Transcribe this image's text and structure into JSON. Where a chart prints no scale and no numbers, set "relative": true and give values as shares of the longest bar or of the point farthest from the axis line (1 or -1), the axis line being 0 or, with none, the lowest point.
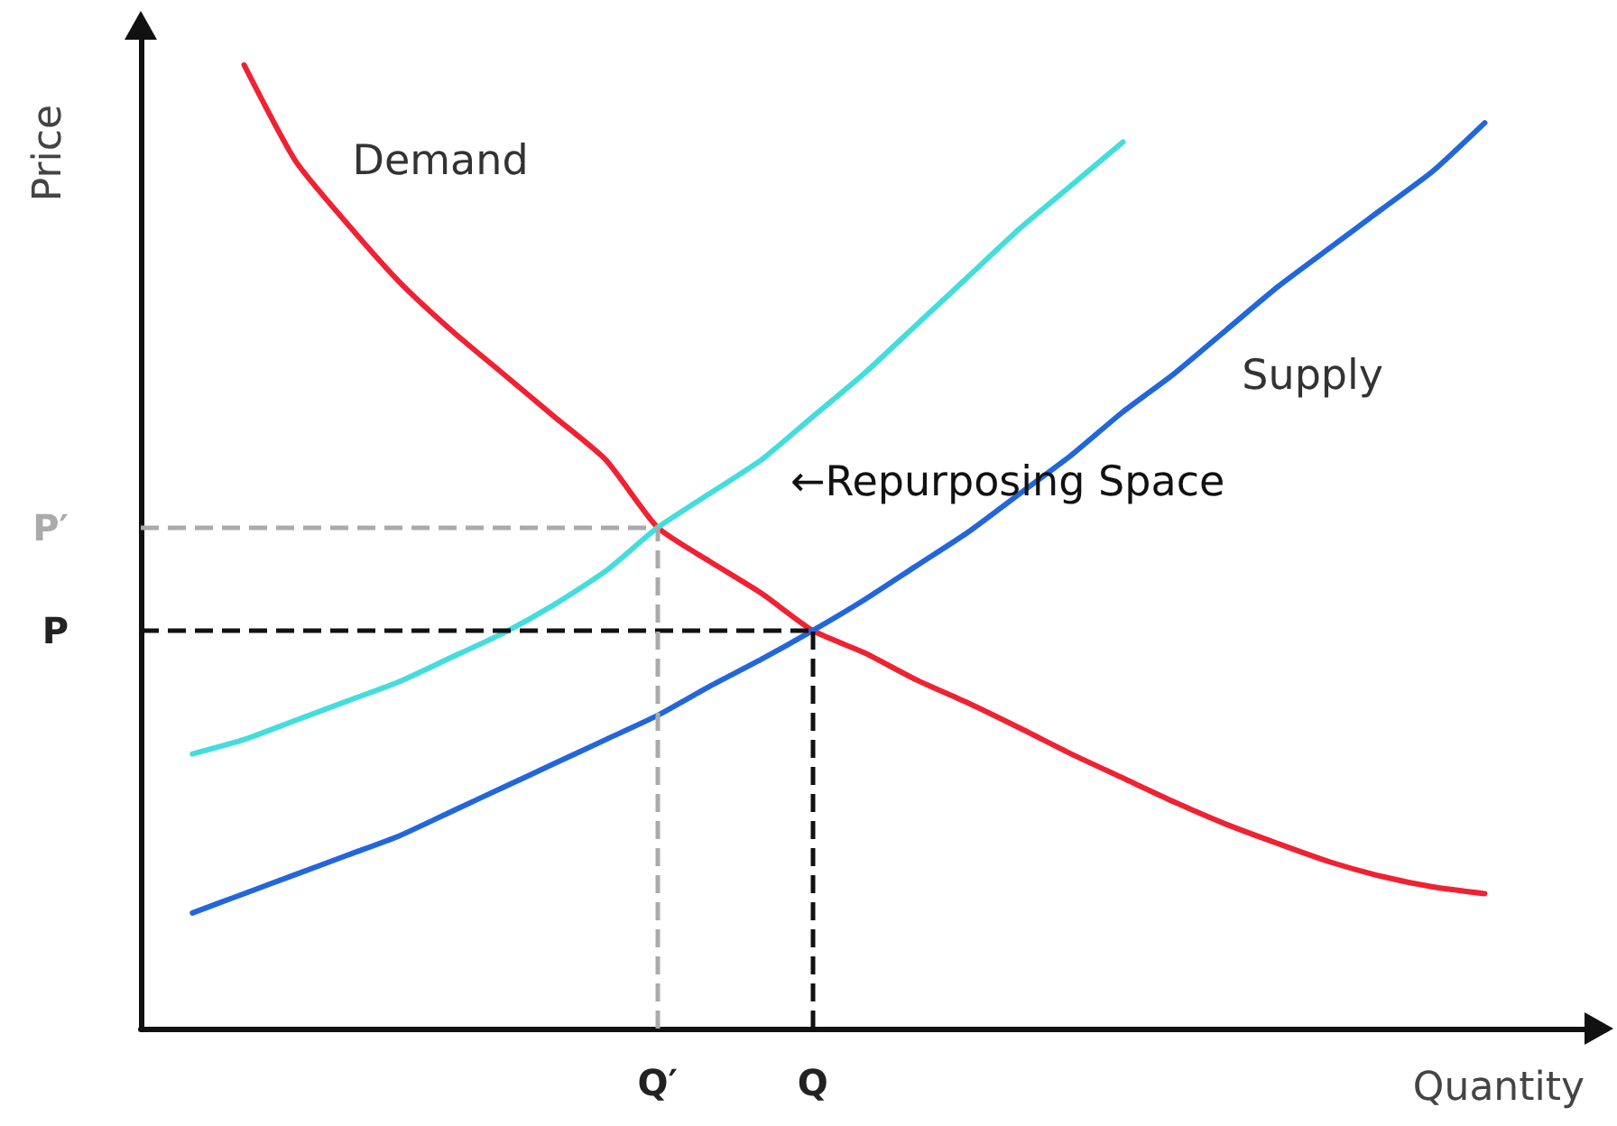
{
  "chart_data": {
    "type": "line",
    "relative": true,
    "xlabel": "Quantity",
    "ylabel": "Price",
    "categories": [
      null,
      null,
      null,
      null,
      null,
      null,
      null,
      null,
      null,
      null,
      "Q′",
      null,
      null,
      "Q",
      null,
      null,
      null,
      null,
      null,
      null,
      null,
      null,
      null,
      null,
      null,
      null,
      null,
      null,
      null
    ],
    "legend": false,
    "marker": "none",
    "line_style": "solid",
    "annotations": [
      "←Repurposing Space"
    ],
    "ref_lines": [
      {
        "axis": "y",
        "value": 0.413,
        "label": "P",
        "color": "#111111",
        "line_style": "dashed"
      },
      {
        "axis": "y",
        "value": 0.52,
        "label": "P′",
        "color": "#aaaaaa",
        "line_style": "dashed"
      },
      {
        "axis": "x",
        "value": "Q",
        "color": "#111111",
        "line_style": "dashed"
      },
      {
        "axis": "x",
        "value": "Q′",
        "color": "#aaaaaa",
        "line_style": "dashed"
      }
    ],
    "series": [
      {
        "name": "Demand",
        "color": "#ee2233",
        "values": [
          null,
          null,
          1.0,
          0.9,
          0.835,
          0.775,
          0.725,
          0.68,
          0.635,
          0.59,
          0.52,
          0.485,
          0.452,
          0.413,
          0.39,
          0.362,
          0.338,
          0.312,
          0.285,
          0.26,
          0.235,
          0.212,
          0.192,
          0.173,
          0.158,
          0.147,
          0.14,
          null,
          null
        ]
      },
      {
        "name": "Supply",
        "color": "#2266dd",
        "values": [
          null,
          0.12,
          0.14,
          0.16,
          0.18,
          0.2,
          0.225,
          0.25,
          0.275,
          0.3,
          0.325,
          0.355,
          0.383,
          0.413,
          0.445,
          0.48,
          0.515,
          0.555,
          0.595,
          0.64,
          0.68,
          0.725,
          0.77,
          0.81,
          0.85,
          0.89,
          0.94,
          null,
          null
        ]
      },
      {
        "color": "#44dddd",
        "values": [
          null,
          0.285,
          0.3,
          0.32,
          0.34,
          0.36,
          0.385,
          0.41,
          0.44,
          0.475,
          0.52,
          0.555,
          0.59,
          0.635,
          0.68,
          0.73,
          0.78,
          0.83,
          0.875,
          0.92,
          null,
          null,
          null,
          null,
          null,
          null,
          null,
          null,
          null
        ]
      }
    ]
  }
}
